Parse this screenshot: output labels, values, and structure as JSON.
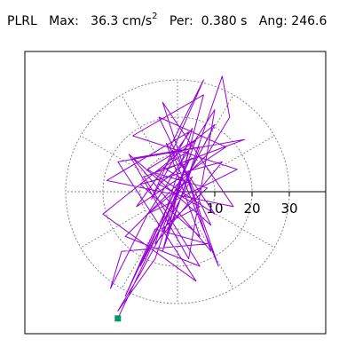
{
  "header": {
    "station": "PLRL",
    "max_label": "Max:",
    "max_value": "36.3",
    "max_unit_base": "cm/s",
    "max_unit_exp": "2",
    "per_label": "Per:",
    "per_value": "0.380 s",
    "ang_label": "Ang:",
    "ang_value": "246.6"
  },
  "chart_data": {
    "type": "line",
    "coordinate_system": "polar",
    "title": "",
    "xlabel": "",
    "ylabel": "",
    "radial_ticks": [
      10,
      20,
      30
    ],
    "radial_tick_labels": [
      "10",
      "20",
      "30"
    ],
    "radial_rings": [
      10,
      20,
      30
    ],
    "angular_spokes_deg": [
      0,
      30,
      60,
      90,
      120,
      150,
      180,
      210,
      240,
      270,
      300,
      330
    ],
    "max_amplitude": 36.3,
    "max_angle_deg": 246.6,
    "grid": true,
    "line_color": "#9400d3",
    "marker_color": "#009966",
    "series": [
      {
        "values": [
          [
            0,
            0
          ],
          [
            2,
            3
          ],
          [
            -3,
            6
          ],
          [
            4,
            9
          ],
          [
            -5,
            2
          ],
          [
            6,
            -4
          ],
          [
            -2,
            -8
          ],
          [
            3,
            11
          ],
          [
            -6,
            5
          ],
          [
            8,
            1
          ],
          [
            -4,
            -10
          ],
          [
            5,
            14
          ],
          [
            -8,
            6
          ],
          [
            10,
            -6
          ],
          [
            -3,
            13
          ],
          [
            6,
            -12
          ],
          [
            -10,
            2
          ],
          [
            12,
            8
          ],
          [
            -6,
            -14
          ],
          [
            4,
            17
          ],
          [
            -11,
            -4
          ],
          [
            13,
            12
          ],
          [
            -5,
            20
          ],
          [
            9,
            -9
          ],
          [
            -13,
            10
          ],
          [
            3,
            -18
          ],
          [
            10,
            22
          ],
          [
            -8,
            -6
          ],
          [
            16,
            6
          ],
          [
            -12,
            15
          ],
          [
            7,
            26
          ],
          [
            -4,
            -16
          ],
          [
            12,
            31
          ],
          [
            14,
            20
          ],
          [
            8,
            10
          ],
          [
            -14,
            -12
          ],
          [
            6,
            -20
          ],
          [
            -9,
            4
          ],
          [
            18,
            14
          ],
          [
            -16,
            8
          ],
          [
            5,
            -24
          ],
          [
            -20,
            -6
          ],
          [
            10,
            18
          ],
          [
            -10,
            -20
          ],
          [
            3,
            8
          ],
          [
            -14,
            -28
          ],
          [
            -6,
            -10
          ],
          [
            8,
            -14
          ],
          [
            -15,
            -16
          ],
          [
            -18,
            -26
          ],
          [
            -8,
            -6
          ],
          [
            4,
            4
          ],
          [
            -10,
            -22
          ],
          [
            -16,
            -32
          ],
          [
            -6,
            -18
          ],
          [
            2,
            6
          ],
          [
            11,
            -20
          ],
          [
            -2,
            12
          ],
          [
            7,
            30
          ],
          [
            -7,
            -2
          ],
          [
            3,
            16
          ],
          [
            -19,
            3
          ],
          [
            15,
            -4
          ],
          [
            -4,
            24
          ],
          [
            9,
            -16
          ],
          [
            -12,
            9
          ],
          [
            6,
            12
          ],
          [
            -3,
            -12
          ],
          [
            1,
            4
          ],
          [
            0,
            0
          ],
          [
            -16,
            -34
          ]
        ]
      }
    ]
  }
}
